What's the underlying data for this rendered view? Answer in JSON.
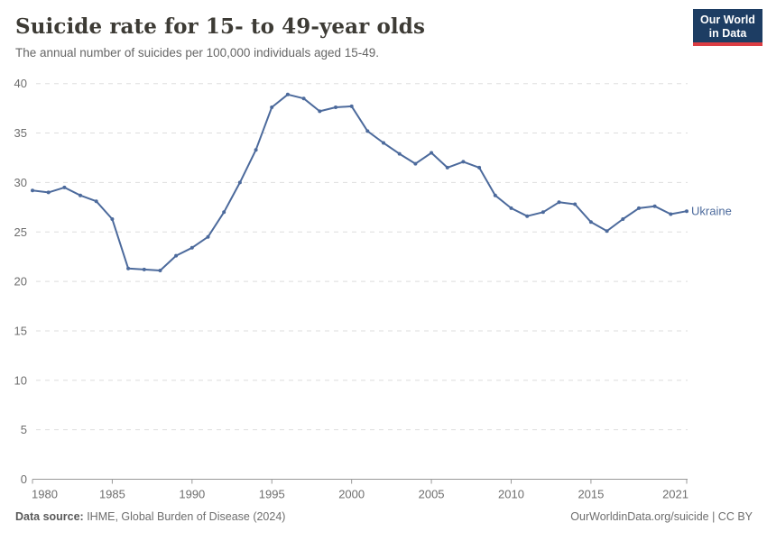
{
  "header": {
    "title": "Suicide rate for 15- to 49-year olds",
    "subtitle": "The annual number of suicides per 100,000 individuals aged 15-49.",
    "logo": {
      "line1": "Our World",
      "line2": "in Data"
    }
  },
  "footer": {
    "source_label": "Data source:",
    "source_text": " IHME, Global Burden of Disease (2024)",
    "link_text": "OurWorldinData.org/suicide | CC BY"
  },
  "chart_data": {
    "type": "line",
    "title": "Suicide rate for 15- to 49-year olds",
    "subtitle": "The annual number of suicides per 100,000 individuals aged 15-49.",
    "entity_label": "Ukraine",
    "xlim": [
      1980,
      2021
    ],
    "ylim": [
      0,
      40
    ],
    "yticks": [
      0,
      5,
      10,
      15,
      20,
      25,
      30,
      35,
      40
    ],
    "xticks": [
      1980,
      1985,
      1990,
      1995,
      2000,
      2005,
      2010,
      2015,
      2021
    ],
    "xtick_labels": [
      "1980",
      "1985",
      "1990",
      "1995",
      "2000",
      "2005",
      "2010",
      "2015",
      "2021"
    ],
    "grid": "horizontal-dashed",
    "legend_position": "end-of-line",
    "series": [
      {
        "name": "Ukraine",
        "color": "#4C6A9C",
        "x": [
          1980,
          1981,
          1982,
          1983,
          1984,
          1985,
          1986,
          1987,
          1988,
          1989,
          1990,
          1991,
          1992,
          1993,
          1994,
          1995,
          1996,
          1997,
          1998,
          1999,
          2000,
          2001,
          2002,
          2003,
          2004,
          2005,
          2006,
          2007,
          2008,
          2009,
          2010,
          2011,
          2012,
          2013,
          2014,
          2015,
          2016,
          2017,
          2018,
          2019,
          2020,
          2021
        ],
        "values": [
          29.2,
          29.0,
          29.5,
          28.7,
          28.1,
          26.3,
          21.3,
          21.2,
          21.1,
          22.6,
          23.4,
          24.5,
          27.0,
          30.0,
          33.3,
          37.6,
          38.9,
          38.5,
          37.2,
          37.6,
          37.7,
          35.2,
          34.0,
          32.9,
          31.9,
          33.0,
          31.5,
          32.1,
          31.5,
          28.7,
          27.4,
          26.6,
          27.0,
          28.0,
          27.8,
          26.0,
          25.1,
          26.3,
          27.4,
          27.6,
          26.8,
          27.1
        ]
      }
    ],
    "colors": {
      "line": "#4C6A9C",
      "grid": "#dddddd",
      "axis": "#999999",
      "tick_label": "#6e6e6e"
    }
  }
}
